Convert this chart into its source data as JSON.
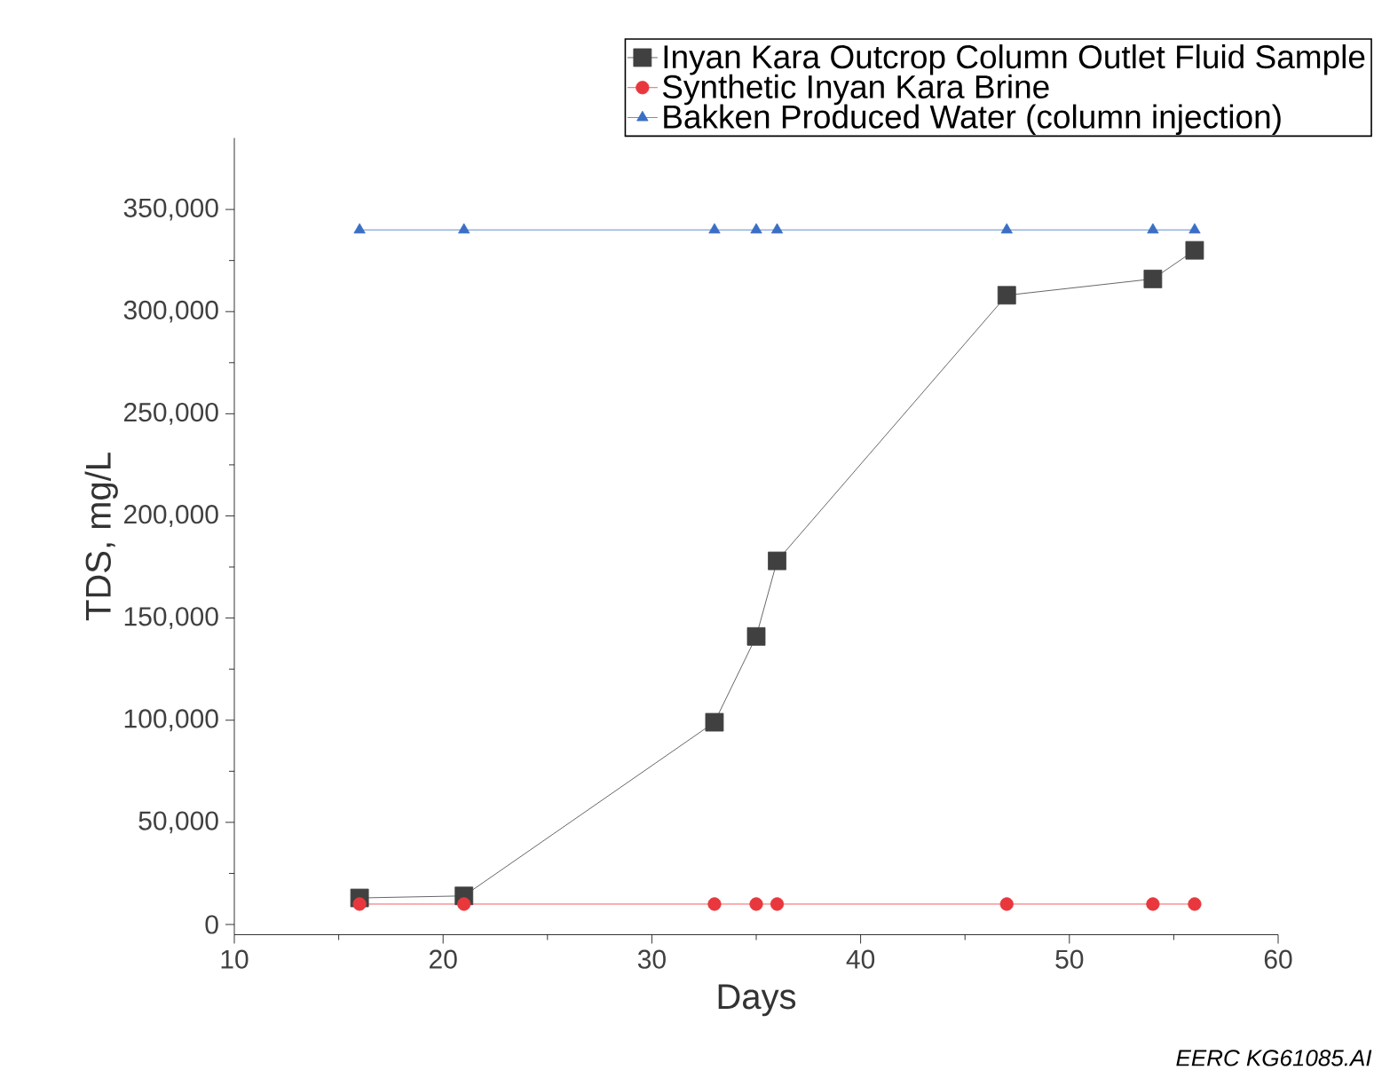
{
  "chart_data": {
    "type": "line",
    "xlabel": "Days",
    "ylabel": "TDS, mg/L",
    "xlim": [
      10,
      60
    ],
    "ylim": [
      -5000,
      385000
    ],
    "xticks": [
      10,
      20,
      30,
      40,
      50,
      60
    ],
    "yticks": [
      {
        "value": 0,
        "label": "0"
      },
      {
        "value": 50000,
        "label": "50,000"
      },
      {
        "value": 100000,
        "label": "100,000"
      },
      {
        "value": 150000,
        "label": "150,000"
      },
      {
        "value": 200000,
        "label": "200,000"
      },
      {
        "value": 250000,
        "label": "250,000"
      },
      {
        "value": 300000,
        "label": "300,000"
      },
      {
        "value": 350000,
        "label": "350,000"
      }
    ],
    "x": [
      16,
      21,
      33,
      35,
      36,
      47,
      54,
      56
    ],
    "series": [
      {
        "name": "Inyan Kara Outcrop Column Outlet Fluid Sample",
        "color": "#404040",
        "marker": "square",
        "values": [
          13000,
          14000,
          99000,
          141000,
          178000,
          308000,
          316000,
          330000
        ]
      },
      {
        "name": "Synthetic Inyan Kara Brine",
        "color": "#e8383d",
        "marker": "circle",
        "values": [
          10000,
          10000,
          10000,
          10000,
          10000,
          10000,
          10000,
          10000
        ]
      },
      {
        "name": "Bakken Produced Water (column injection)",
        "color": "#3a6fc4",
        "marker": "triangle",
        "values": [
          340000,
          340000,
          340000,
          340000,
          340000,
          340000,
          340000,
          340000
        ]
      }
    ],
    "legend": "top right",
    "annotations": [
      "EERC KG61085.AI"
    ]
  }
}
